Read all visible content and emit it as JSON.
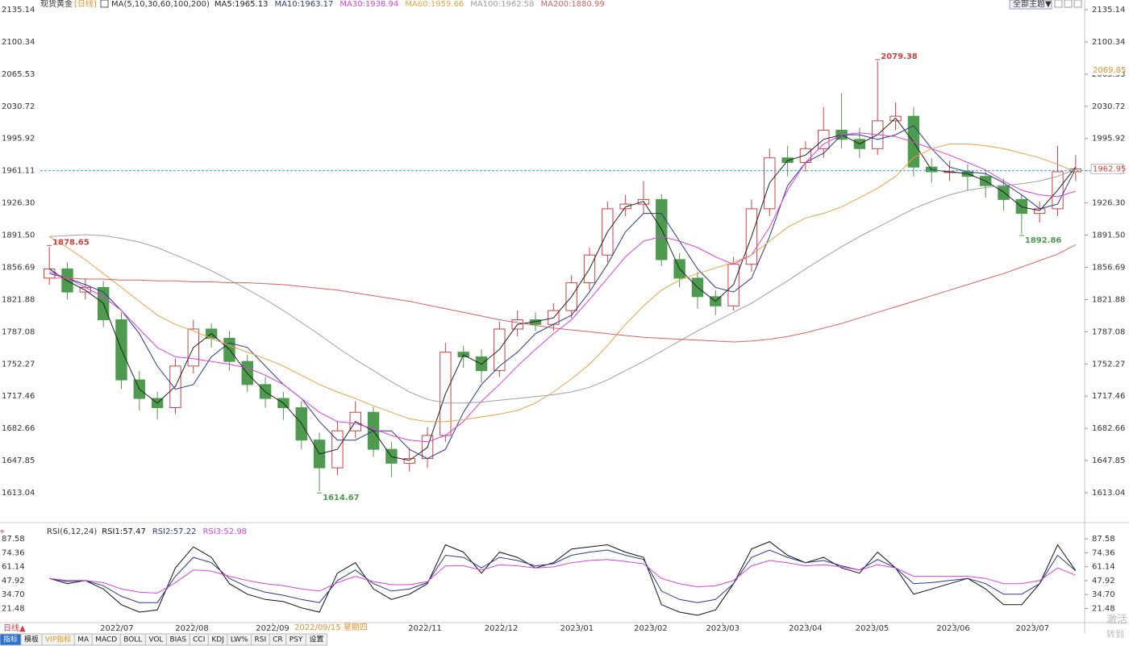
{
  "header": {
    "title": "现货黄金",
    "period": "[日线]",
    "ma_group": "MA(5,10,30,60,100,200)",
    "theme_button": "全部主题▼",
    "cursor_date": "2022/09/15 星期四"
  },
  "footer": {
    "period": "日线▲",
    "tabs": [
      "指标",
      "模板",
      "VIP指标",
      "MA",
      "MACD",
      "BOLL",
      "VOL",
      "BIAS",
      "CCI",
      "KDJ",
      "LW%",
      "RSI",
      "CR",
      "PSY",
      "设置"
    ],
    "watermark": [
      "激活",
      "转到"
    ]
  },
  "chart_data": [
    {
      "type": "candlestick",
      "up_color": "#d04040",
      "down_color": "#4e9a4e",
      "open": [
        1845,
        1855,
        1830,
        1835,
        1800,
        1735,
        1715,
        1705,
        1750,
        1790,
        1780,
        1755,
        1730,
        1715,
        1705,
        1670,
        1640,
        1680,
        1700,
        1660,
        1645,
        1650,
        1675,
        1765,
        1760,
        1745,
        1790,
        1800,
        1795,
        1810,
        1840,
        1870,
        1920,
        1925,
        1930,
        1865,
        1845,
        1825,
        1815,
        1860,
        1920,
        1975,
        1970,
        1985,
        2005,
        1995,
        1985,
        2015,
        2020,
        1965,
        1960,
        1960,
        1955,
        1945,
        1930,
        1915,
        1920,
        1960
      ],
      "high": [
        1878.65,
        1862,
        1845,
        1842,
        1808,
        1745,
        1722,
        1758,
        1800,
        1796,
        1788,
        1762,
        1738,
        1722,
        1712,
        1678,
        1690,
        1712,
        1706,
        1668,
        1660,
        1684,
        1775,
        1772,
        1768,
        1798,
        1810,
        1808,
        1818,
        1848,
        1878,
        1928,
        1935,
        1950,
        1936,
        1872,
        1852,
        1832,
        1868,
        1930,
        1985,
        1988,
        1993,
        2030,
        2045,
        2008,
        2079.38,
        2035,
        2030,
        1975,
        1972,
        1968,
        1962,
        1952,
        1936,
        1928,
        1988,
        1978
      ],
      "low": [
        1838,
        1822,
        1822,
        1792,
        1725,
        1702,
        1692,
        1698,
        1742,
        1770,
        1745,
        1722,
        1705,
        1692,
        1660,
        1614.67,
        1632,
        1672,
        1652,
        1630,
        1636,
        1640,
        1668,
        1748,
        1732,
        1738,
        1782,
        1788,
        1788,
        1802,
        1832,
        1862,
        1912,
        1915,
        1858,
        1835,
        1812,
        1805,
        1810,
        1852,
        1912,
        1955,
        1960,
        1975,
        1985,
        1975,
        1978,
        2005,
        1955,
        1948,
        1950,
        1940,
        1932,
        1918,
        1892.86,
        1905,
        1912,
        1950
      ],
      "close": [
        1855,
        1830,
        1835,
        1800,
        1735,
        1715,
        1705,
        1750,
        1790,
        1780,
        1755,
        1730,
        1715,
        1705,
        1670,
        1640,
        1680,
        1700,
        1660,
        1645,
        1650,
        1675,
        1765,
        1760,
        1745,
        1790,
        1800,
        1795,
        1810,
        1840,
        1870,
        1920,
        1925,
        1930,
        1865,
        1845,
        1825,
        1815,
        1860,
        1920,
        1975,
        1970,
        1985,
        2005,
        1995,
        1985,
        2015,
        2020,
        1965,
        1960,
        1960,
        1955,
        1945,
        1930,
        1915,
        1920,
        1960,
        1962.95
      ],
      "series": [
        {
          "name": "MA5:1965.13",
          "color": "#222222",
          "values": [
            1855,
            1842,
            1832,
            1818,
            1768,
            1725,
            1710,
            1728,
            1770,
            1785,
            1768,
            1742,
            1722,
            1710,
            1688,
            1655,
            1660,
            1690,
            1680,
            1652,
            1648,
            1662,
            1720,
            1762,
            1752,
            1768,
            1795,
            1798,
            1802,
            1825,
            1855,
            1895,
            1922,
            1928,
            1898,
            1855,
            1835,
            1820,
            1838,
            1890,
            1948,
            1972,
            1978,
            1995,
            2000,
            1990,
            2000,
            2018,
            1992,
            1962,
            1960,
            1958,
            1950,
            1938,
            1922,
            1918,
            1940,
            1965.13
          ]
        },
        {
          "name": "MA10:1963.17",
          "color": "#2b3a8c",
          "values": [
            1850,
            1845,
            1838,
            1830,
            1810,
            1785,
            1750,
            1725,
            1730,
            1760,
            1775,
            1770,
            1750,
            1730,
            1715,
            1690,
            1670,
            1670,
            1680,
            1680,
            1660,
            1650,
            1660,
            1700,
            1730,
            1750,
            1765,
            1785,
            1795,
            1805,
            1830,
            1860,
            1895,
            1915,
            1915,
            1885,
            1855,
            1835,
            1830,
            1845,
            1890,
            1945,
            1970,
            1980,
            2000,
            2000,
            1995,
            2000,
            2010,
            1985,
            1965,
            1960,
            1958,
            1948,
            1935,
            1920,
            1925,
            1963.17
          ]
        },
        {
          "name": "MA30:1938.94",
          "color": "#e040e0",
          "values": [
            1852,
            1845,
            1835,
            1825,
            1810,
            1790,
            1770,
            1760,
            1758,
            1755,
            1752,
            1748,
            1740,
            1730,
            1715,
            1700,
            1690,
            1688,
            1682,
            1675,
            1670,
            1668,
            1675,
            1690,
            1712,
            1730,
            1750,
            1768,
            1785,
            1800,
            1822,
            1845,
            1868,
            1885,
            1890,
            1885,
            1878,
            1868,
            1860,
            1870,
            1900,
            1940,
            1970,
            1990,
            2000,
            2002,
            2000,
            1998,
            1992,
            1985,
            1978,
            1970,
            1962,
            1950,
            1940,
            1935,
            1933,
            1938.94
          ]
        },
        {
          "name": "MA60:1959.66",
          "color": "#f0a040",
          "values": [
            1890,
            1878,
            1865,
            1850,
            1835,
            1820,
            1805,
            1795,
            1788,
            1780,
            1772,
            1765,
            1758,
            1750,
            1740,
            1730,
            1722,
            1715,
            1707,
            1700,
            1693,
            1690,
            1690,
            1692,
            1695,
            1698,
            1702,
            1710,
            1722,
            1736,
            1752,
            1772,
            1795,
            1815,
            1832,
            1843,
            1850,
            1856,
            1862,
            1870,
            1885,
            1900,
            1910,
            1915,
            1922,
            1932,
            1942,
            1955,
            1975,
            1985,
            1990,
            1990,
            1988,
            1985,
            1980,
            1975,
            1968,
            1959.66
          ]
        },
        {
          "name": "MA100:1962.58",
          "color": "#a0a0a0",
          "values": [
            1890,
            1891,
            1892,
            1891,
            1888,
            1884,
            1878,
            1870,
            1862,
            1853,
            1843,
            1833,
            1822,
            1810,
            1797,
            1784,
            1770,
            1757,
            1745,
            1733,
            1722,
            1714,
            1710,
            1710,
            1711,
            1713,
            1715,
            1717,
            1719,
            1722,
            1727,
            1735,
            1745,
            1755,
            1766,
            1777,
            1788,
            1798,
            1808,
            1818,
            1830,
            1842,
            1855,
            1867,
            1879,
            1890,
            1900,
            1910,
            1920,
            1928,
            1935,
            1940,
            1943,
            1945,
            1947,
            1950,
            1955,
            1962.58
          ]
        },
        {
          "name": "MA200:1880.99",
          "color": "#e06060",
          "values": [
            1845,
            1845,
            1844,
            1844,
            1843,
            1843,
            1842,
            1842,
            1841,
            1841,
            1840,
            1840,
            1839,
            1838,
            1836,
            1834,
            1832,
            1829,
            1826,
            1823,
            1820,
            1816,
            1812,
            1808,
            1804,
            1800,
            1797,
            1794,
            1791,
            1789,
            1787,
            1785,
            1783,
            1781,
            1780,
            1779,
            1778,
            1777,
            1776,
            1777,
            1779,
            1782,
            1786,
            1791,
            1796,
            1802,
            1808,
            1814,
            1820,
            1826,
            1832,
            1838,
            1844,
            1850,
            1857,
            1864,
            1871,
            1880.99
          ]
        }
      ],
      "xlim": [
        0,
        58
      ],
      "xticks": [
        {
          "value": 4.25,
          "label": "2022/07"
        },
        {
          "value": 8.42,
          "label": "2022/08"
        },
        {
          "value": 12.9,
          "label": "2022/09"
        },
        {
          "value": 21.36,
          "label": "2022/11"
        },
        {
          "value": 25.6,
          "label": "2022/12"
        },
        {
          "value": 29.8,
          "label": "2023/01"
        },
        {
          "value": 33.9,
          "label": "2023/02"
        },
        {
          "value": 37.9,
          "label": "2023/03"
        },
        {
          "value": 42.5,
          "label": "2023/04"
        },
        {
          "value": 46.2,
          "label": "2023/05"
        },
        {
          "value": 50.7,
          "label": "2023/06"
        },
        {
          "value": 55.1,
          "label": "2023/07"
        }
      ],
      "ylim": [
        1583.4,
        2140.4
      ],
      "yticks": [
        2135.14,
        2100.34,
        2065.53,
        2030.72,
        1995.92,
        1961.11,
        {
          "value": 1926.3,
          "label": "1926.30"
        },
        {
          "value": 1891.5,
          "label": "1891.50"
        },
        1856.69,
        1821.88,
        1787.08,
        1752.27,
        1717.46,
        1682.66,
        1647.85,
        1613.04
      ],
      "price_line": 1961.11,
      "right_markers": [
        {
          "value": 2069.85,
          "color": "#e8902a"
        },
        {
          "value": 1962.95,
          "color": "#d04040"
        }
      ],
      "grid": false
    },
    {
      "type": "line",
      "title": "RSI(6,12,24)",
      "series": [
        {
          "name": "RSI1:57.47",
          "color": "#111111",
          "values": [
            50,
            45,
            48,
            40,
            25,
            18,
            20,
            60,
            80,
            70,
            45,
            35,
            30,
            28,
            22,
            18,
            55,
            65,
            40,
            30,
            35,
            45,
            82,
            75,
            55,
            75,
            70,
            60,
            65,
            78,
            80,
            82,
            75,
            70,
            25,
            18,
            15,
            20,
            45,
            78,
            85,
            72,
            65,
            70,
            60,
            55,
            75,
            60,
            35,
            40,
            45,
            50,
            40,
            25,
            25,
            45,
            82,
            57.47
          ]
        },
        {
          "name": "RSI2:57.22",
          "color": "#2b3a8c",
          "values": [
            50,
            47,
            48,
            43,
            33,
            27,
            27,
            52,
            70,
            65,
            50,
            42,
            37,
            34,
            30,
            27,
            48,
            58,
            45,
            38,
            40,
            46,
            72,
            70,
            60,
            70,
            67,
            62,
            64,
            72,
            75,
            77,
            72,
            68,
            38,
            30,
            27,
            30,
            45,
            70,
            77,
            70,
            65,
            67,
            62,
            58,
            68,
            60,
            45,
            46,
            48,
            50,
            45,
            35,
            35,
            45,
            72,
            57.22
          ]
        },
        {
          "name": "RSI3:52.98",
          "color": "#e040e0",
          "values": [
            50,
            48,
            48,
            46,
            40,
            37,
            36,
            46,
            58,
            57,
            52,
            48,
            45,
            43,
            40,
            38,
            46,
            52,
            47,
            44,
            44,
            47,
            62,
            62,
            58,
            63,
            62,
            60,
            61,
            65,
            67,
            68,
            66,
            64,
            50,
            45,
            42,
            43,
            48,
            62,
            67,
            65,
            62,
            63,
            61,
            58,
            63,
            60,
            52,
            52,
            52,
            52,
            50,
            45,
            45,
            48,
            60,
            52.98
          ]
        }
      ],
      "ylim": [
        8,
        100
      ],
      "yticks": [
        87.58,
        74.36,
        61.14,
        47.92,
        {
          "value": 34.7,
          "label": "34.70"
        },
        21.48
      ],
      "grid": false
    }
  ]
}
